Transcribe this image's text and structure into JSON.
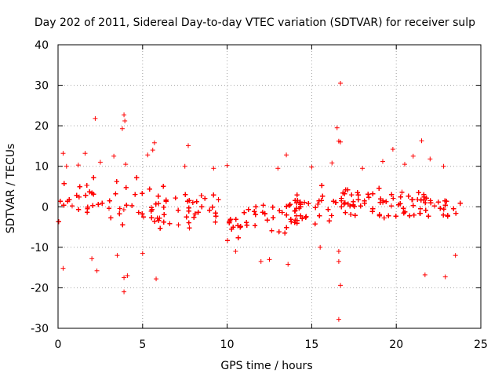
{
  "chart_data": {
    "type": "scatter",
    "title": "Day 202 of 2011, Sidereal Day-to-day VTEC variation (SDTVAR) for receiver sulp",
    "xlabel": "GPS time / hours",
    "ylabel": "SDTVAR / TECUs",
    "xlim": [
      0,
      25
    ],
    "ylim": [
      -30,
      40
    ],
    "xticks": [
      0,
      5,
      10,
      15,
      20,
      25
    ],
    "yticks": [
      -30,
      -20,
      -10,
      0,
      10,
      20,
      30,
      40
    ],
    "xtick_labels": [
      "0",
      "5",
      "10",
      "15",
      "20",
      "25"
    ],
    "ytick_labels": [
      "-30",
      "-20",
      "-10",
      "0",
      "10",
      "20",
      "30",
      "40"
    ],
    "grid": true,
    "marker": "+",
    "series_color": "#ff0000",
    "series": [
      {
        "name": "SDTVAR",
        "band_description": "dense cloud of points, roughly symmetric about 0",
        "band_envelope": {
          "x": [
            0.0,
            2.0,
            4.0,
            6.0,
            8.0,
            9.5,
            10.5,
            11.5,
            12.5,
            14.0,
            15.5,
            17.0,
            19.0,
            21.0,
            23.0,
            23.8
          ],
          "upper": [
            7,
            8,
            8,
            7,
            6,
            5,
            3,
            2,
            3,
            5,
            6,
            7,
            7,
            7,
            6,
            6
          ],
          "lower": [
            -7,
            -8,
            -8,
            -8,
            -8,
            -8,
            -9,
            -10,
            -9,
            -8,
            -7,
            -7,
            -7,
            -7,
            -7,
            -7
          ]
        },
        "outliers": [
          {
            "x": 0.3,
            "y": 13.2
          },
          {
            "x": 0.5,
            "y": 10.0
          },
          {
            "x": 0.3,
            "y": -15.2
          },
          {
            "x": 1.2,
            "y": 10.3
          },
          {
            "x": 1.6,
            "y": 13.2
          },
          {
            "x": 2.0,
            "y": -12.8
          },
          {
            "x": 2.2,
            "y": 21.8
          },
          {
            "x": 2.3,
            "y": -15.8
          },
          {
            "x": 2.5,
            "y": 11.0
          },
          {
            "x": 3.3,
            "y": 12.5
          },
          {
            "x": 3.5,
            "y": -12.0
          },
          {
            "x": 3.8,
            "y": 19.3
          },
          {
            "x": 3.9,
            "y": 22.7
          },
          {
            "x": 3.95,
            "y": 21.2
          },
          {
            "x": 3.9,
            "y": -17.5
          },
          {
            "x": 3.9,
            "y": -21.0
          },
          {
            "x": 4.0,
            "y": 10.5
          },
          {
            "x": 4.1,
            "y": -17.0
          },
          {
            "x": 5.0,
            "y": -11.5
          },
          {
            "x": 5.3,
            "y": 12.8
          },
          {
            "x": 5.7,
            "y": 15.8
          },
          {
            "x": 5.8,
            "y": -17.8
          },
          {
            "x": 5.6,
            "y": 14.0
          },
          {
            "x": 7.7,
            "y": 15.1
          },
          {
            "x": 7.5,
            "y": 10.0
          },
          {
            "x": 9.2,
            "y": 9.5
          },
          {
            "x": 10.0,
            "y": 10.2
          },
          {
            "x": 10.5,
            "y": -11.0
          },
          {
            "x": 12.0,
            "y": -13.5
          },
          {
            "x": 12.5,
            "y": -13.0
          },
          {
            "x": 13.0,
            "y": 9.5
          },
          {
            "x": 13.5,
            "y": 12.8
          },
          {
            "x": 13.6,
            "y": -14.2
          },
          {
            "x": 15.0,
            "y": 9.8
          },
          {
            "x": 15.5,
            "y": -10.0
          },
          {
            "x": 16.2,
            "y": 10.8
          },
          {
            "x": 16.5,
            "y": 19.5
          },
          {
            "x": 16.6,
            "y": 16.2
          },
          {
            "x": 16.7,
            "y": 30.5
          },
          {
            "x": 16.7,
            "y": 16.0
          },
          {
            "x": 16.6,
            "y": -11.0
          },
          {
            "x": 16.6,
            "y": -13.5
          },
          {
            "x": 16.7,
            "y": -19.4
          },
          {
            "x": 16.6,
            "y": -27.8
          },
          {
            "x": 18.0,
            "y": 9.5
          },
          {
            "x": 19.2,
            "y": 11.2
          },
          {
            "x": 19.8,
            "y": 14.2
          },
          {
            "x": 20.5,
            "y": 10.5
          },
          {
            "x": 21.0,
            "y": 12.5
          },
          {
            "x": 21.5,
            "y": 16.3
          },
          {
            "x": 21.7,
            "y": -16.8
          },
          {
            "x": 22.0,
            "y": 11.8
          },
          {
            "x": 22.9,
            "y": -17.3
          },
          {
            "x": 22.8,
            "y": 10.0
          },
          {
            "x": 23.5,
            "y": -12.0
          }
        ]
      }
    ]
  }
}
